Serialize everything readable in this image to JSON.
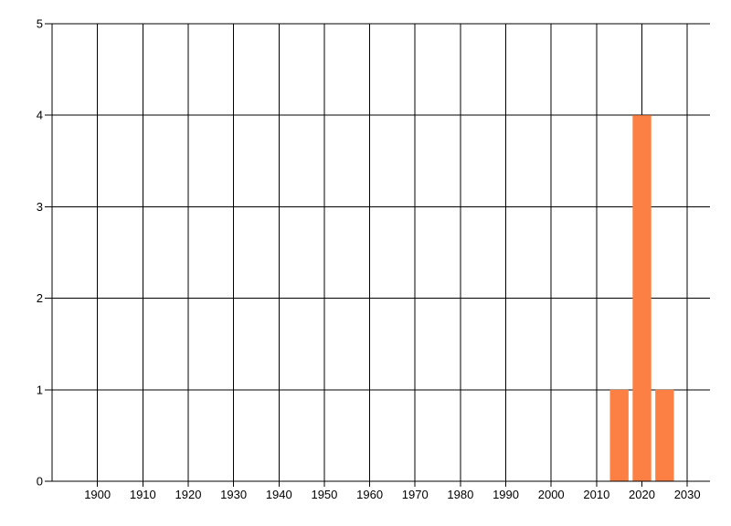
{
  "page": {
    "background": "#FFFFFF"
  },
  "chart_data": {
    "type": "bar",
    "title": "",
    "xlabel": "",
    "ylabel": "",
    "x": [
      2015,
      2020,
      2025
    ],
    "values": [
      1,
      4,
      1
    ],
    "bar_width_x_units": 4.1,
    "xlim": [
      1890,
      2035
    ],
    "ylim": [
      0,
      5
    ],
    "x_ticks": [
      1900,
      1910,
      1920,
      1930,
      1940,
      1950,
      1960,
      1970,
      1980,
      1990,
      2000,
      2010,
      2020,
      2030
    ],
    "x_tick_labels": [
      "1900",
      "1910",
      "1920",
      "1930",
      "1940",
      "1950",
      "1960",
      "1970",
      "1980",
      "1990",
      "2000",
      "2010",
      "2020",
      "2030"
    ],
    "y_ticks": [
      0,
      1,
      2,
      3,
      4,
      5
    ],
    "y_tick_labels": [
      "0",
      "1",
      "2",
      "3",
      "4",
      "5"
    ],
    "grid": "on",
    "legend": "none",
    "colors": {
      "bar": "#FC8044",
      "grid": "#000000",
      "axis": "#000000",
      "text": "#000000",
      "background": "#FFFFFF"
    }
  }
}
